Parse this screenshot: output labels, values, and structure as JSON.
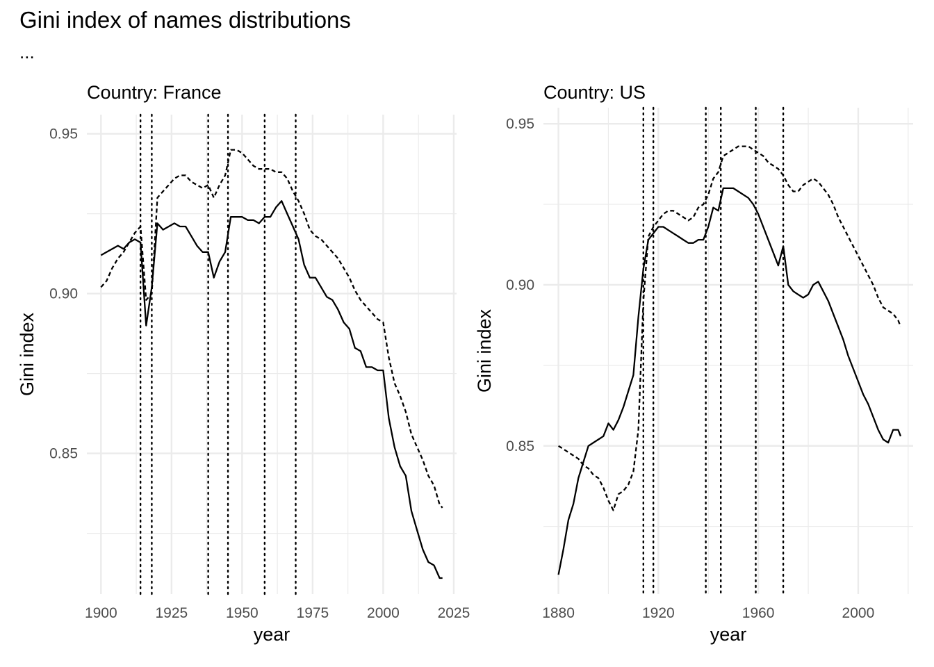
{
  "title": "Gini index of names distributions",
  "subtitle": "...",
  "chart_data": [
    {
      "type": "line",
      "title": "Country: France",
      "xlabel": "year",
      "ylabel": "Gini index",
      "xlim": [
        1895,
        2026
      ],
      "ylim": [
        0.806,
        0.956
      ],
      "xticks": [
        1900,
        1925,
        1950,
        1975,
        2000,
        2025
      ],
      "xtick_labels": [
        "1900",
        "1925",
        "1950",
        "1975",
        "2000",
        "2025"
      ],
      "yticks": [
        0.85,
        0.9,
        0.95
      ],
      "ytick_labels": [
        "0.85",
        "0.90",
        "0.95"
      ],
      "grid": true,
      "vlines": [
        1914,
        1918,
        1938,
        1945,
        1958,
        1969
      ],
      "series": [
        {
          "style": "solid",
          "x": [
            1900,
            1902,
            1904,
            1906,
            1908,
            1910,
            1912,
            1914,
            1916,
            1918,
            1920,
            1922,
            1924,
            1926,
            1928,
            1930,
            1932,
            1934,
            1936,
            1938,
            1940,
            1942,
            1944,
            1946,
            1948,
            1950,
            1952,
            1954,
            1956,
            1958,
            1960,
            1962,
            1964,
            1966,
            1968,
            1970,
            1972,
            1974,
            1976,
            1978,
            1980,
            1982,
            1984,
            1986,
            1988,
            1990,
            1992,
            1994,
            1996,
            1998,
            2000,
            2002,
            2004,
            2006,
            2008,
            2010,
            2012,
            2014,
            2016,
            2018,
            2020,
            2021
          ],
          "y": [
            0.912,
            0.913,
            0.914,
            0.915,
            0.914,
            0.916,
            0.917,
            0.916,
            0.89,
            0.902,
            0.922,
            0.92,
            0.921,
            0.922,
            0.921,
            0.921,
            0.918,
            0.915,
            0.913,
            0.913,
            0.905,
            0.91,
            0.913,
            0.924,
            0.924,
            0.924,
            0.923,
            0.923,
            0.922,
            0.924,
            0.924,
            0.927,
            0.929,
            0.925,
            0.921,
            0.917,
            0.909,
            0.905,
            0.905,
            0.902,
            0.899,
            0.898,
            0.895,
            0.891,
            0.889,
            0.883,
            0.882,
            0.877,
            0.877,
            0.876,
            0.876,
            0.861,
            0.852,
            0.846,
            0.843,
            0.832,
            0.826,
            0.82,
            0.816,
            0.815,
            0.811,
            0.811
          ]
        },
        {
          "style": "dashed",
          "x": [
            1900,
            1902,
            1904,
            1906,
            1908,
            1910,
            1912,
            1914,
            1916,
            1918,
            1920,
            1922,
            1924,
            1926,
            1928,
            1930,
            1932,
            1934,
            1936,
            1938,
            1940,
            1942,
            1944,
            1946,
            1948,
            1950,
            1952,
            1954,
            1956,
            1958,
            1960,
            1962,
            1964,
            1966,
            1968,
            1970,
            1972,
            1974,
            1976,
            1978,
            1980,
            1982,
            1984,
            1986,
            1988,
            1990,
            1992,
            1994,
            1996,
            1998,
            2000,
            2002,
            2004,
            2006,
            2008,
            2010,
            2012,
            2014,
            2016,
            2018,
            2020,
            2021
          ],
          "y": [
            0.902,
            0.904,
            0.908,
            0.911,
            0.913,
            0.916,
            0.919,
            0.921,
            0.898,
            0.9,
            0.93,
            0.932,
            0.934,
            0.936,
            0.937,
            0.937,
            0.935,
            0.934,
            0.933,
            0.934,
            0.93,
            0.934,
            0.937,
            0.945,
            0.945,
            0.944,
            0.942,
            0.94,
            0.939,
            0.939,
            0.939,
            0.938,
            0.938,
            0.936,
            0.932,
            0.929,
            0.925,
            0.92,
            0.918,
            0.917,
            0.915,
            0.913,
            0.911,
            0.908,
            0.905,
            0.901,
            0.898,
            0.896,
            0.894,
            0.892,
            0.891,
            0.88,
            0.872,
            0.868,
            0.863,
            0.856,
            0.852,
            0.848,
            0.843,
            0.84,
            0.834,
            0.833
          ]
        }
      ]
    },
    {
      "type": "line",
      "title": "Country: US",
      "xlabel": "year",
      "ylabel": "Gini index",
      "xlim": [
        1874,
        2022
      ],
      "ylim": [
        0.804,
        0.955
      ],
      "xticks": [
        1880,
        1920,
        1960,
        2000
      ],
      "xtick_labels": [
        "1880",
        "1920",
        "1960",
        "2000"
      ],
      "yticks": [
        0.85,
        0.9,
        0.95
      ],
      "ytick_labels": [
        "0.85",
        "0.90",
        "0.95"
      ],
      "grid": true,
      "vlines": [
        1914,
        1918,
        1939,
        1945,
        1959,
        1970
      ],
      "series": [
        {
          "style": "solid",
          "x": [
            1880,
            1882,
            1884,
            1886,
            1888,
            1890,
            1892,
            1894,
            1896,
            1898,
            1900,
            1902,
            1904,
            1906,
            1908,
            1910,
            1912,
            1914,
            1916,
            1918,
            1920,
            1922,
            1924,
            1926,
            1928,
            1930,
            1932,
            1934,
            1936,
            1938,
            1940,
            1942,
            1944,
            1946,
            1948,
            1950,
            1952,
            1954,
            1956,
            1958,
            1960,
            1962,
            1964,
            1966,
            1968,
            1970,
            1972,
            1974,
            1976,
            1978,
            1980,
            1982,
            1984,
            1986,
            1988,
            1990,
            1992,
            1994,
            1996,
            1998,
            2000,
            2002,
            2004,
            2006,
            2008,
            2010,
            2012,
            2014,
            2016,
            2017
          ],
          "y": [
            0.81,
            0.818,
            0.827,
            0.832,
            0.84,
            0.845,
            0.85,
            0.851,
            0.852,
            0.853,
            0.857,
            0.855,
            0.858,
            0.862,
            0.867,
            0.872,
            0.89,
            0.905,
            0.914,
            0.916,
            0.918,
            0.918,
            0.917,
            0.916,
            0.915,
            0.914,
            0.913,
            0.913,
            0.914,
            0.914,
            0.918,
            0.924,
            0.923,
            0.93,
            0.93,
            0.93,
            0.929,
            0.928,
            0.927,
            0.925,
            0.922,
            0.918,
            0.914,
            0.91,
            0.906,
            0.912,
            0.9,
            0.898,
            0.897,
            0.896,
            0.897,
            0.9,
            0.901,
            0.898,
            0.895,
            0.891,
            0.887,
            0.883,
            0.878,
            0.874,
            0.87,
            0.866,
            0.863,
            0.859,
            0.855,
            0.852,
            0.851,
            0.855,
            0.855,
            0.853
          ]
        },
        {
          "style": "dashed",
          "x": [
            1880,
            1882,
            1884,
            1886,
            1888,
            1890,
            1892,
            1894,
            1896,
            1898,
            1900,
            1902,
            1904,
            1906,
            1908,
            1910,
            1912,
            1914,
            1916,
            1918,
            1920,
            1922,
            1924,
            1926,
            1928,
            1930,
            1932,
            1934,
            1936,
            1938,
            1940,
            1942,
            1944,
            1946,
            1948,
            1950,
            1952,
            1954,
            1956,
            1958,
            1960,
            1962,
            1964,
            1966,
            1968,
            1970,
            1972,
            1974,
            1976,
            1978,
            1980,
            1982,
            1984,
            1986,
            1988,
            1990,
            1992,
            1994,
            1996,
            1998,
            2000,
            2002,
            2004,
            2006,
            2008,
            2010,
            2012,
            2014,
            2016,
            2017
          ],
          "y": [
            0.85,
            0.849,
            0.848,
            0.847,
            0.846,
            0.844,
            0.843,
            0.841,
            0.84,
            0.837,
            0.833,
            0.83,
            0.835,
            0.836,
            0.838,
            0.842,
            0.855,
            0.895,
            0.915,
            0.918,
            0.92,
            0.922,
            0.923,
            0.923,
            0.922,
            0.921,
            0.92,
            0.921,
            0.924,
            0.925,
            0.928,
            0.933,
            0.935,
            0.94,
            0.941,
            0.942,
            0.943,
            0.943,
            0.943,
            0.942,
            0.941,
            0.94,
            0.938,
            0.937,
            0.936,
            0.934,
            0.931,
            0.929,
            0.929,
            0.931,
            0.932,
            0.933,
            0.932,
            0.93,
            0.928,
            0.925,
            0.921,
            0.918,
            0.915,
            0.912,
            0.909,
            0.906,
            0.903,
            0.9,
            0.896,
            0.893,
            0.892,
            0.891,
            0.889,
            0.887
          ]
        }
      ]
    }
  ]
}
